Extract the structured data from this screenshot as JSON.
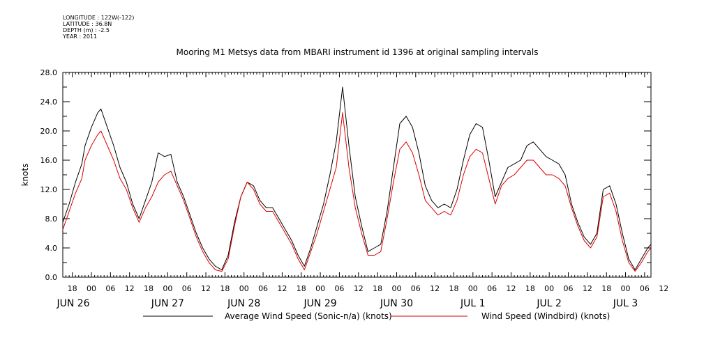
{
  "header": {
    "lines": [
      "LONGITUDE : 122W(-122)",
      "LATITUDE : 36.8N",
      "DEPTH (m) : -2.5",
      "YEAR : 2011"
    ]
  },
  "chart_data": {
    "type": "line",
    "title": "Mooring M1 Metsys data from MBARI instrument id 1396 at original sampling intervals",
    "xlabel": "",
    "ylabel": "knots",
    "ylim": [
      0,
      28
    ],
    "yticks": [
      "0.0",
      "4.0",
      "8.0",
      "12.0",
      "16.0",
      "20.0",
      "24.0",
      "28.0"
    ],
    "xlim_hours": [
      15,
      200
    ],
    "xticks_hours": [
      "18",
      "00",
      "06",
      "12",
      "18",
      "00",
      "06",
      "12",
      "18",
      "00",
      "06",
      "12",
      "18",
      "00",
      "06",
      "12",
      "18",
      "00",
      "06",
      "12",
      "18",
      "00",
      "06",
      "12",
      "18",
      "00",
      "06",
      "12",
      "18",
      "00",
      "06",
      "12"
    ],
    "xdates": [
      "JUN 26",
      "JUN 27",
      "JUN 28",
      "JUN 29",
      "JUN 30",
      "JUL  1",
      "JUL  2",
      "JUL  3"
    ],
    "series": [
      {
        "name": "Average Wind Speed (Sonic-n/a) (knots)",
        "color": "#000000",
        "x": [
          15,
          17,
          19,
          21,
          22,
          24,
          26,
          27,
          29,
          31,
          33,
          35,
          37,
          39,
          41,
          43,
          45,
          47,
          49,
          51,
          53,
          55,
          57,
          59,
          61,
          63,
          65,
          67,
          69,
          71,
          73,
          75,
          77,
          79,
          81,
          83,
          85,
          87,
          89,
          91,
          93,
          95,
          97,
          99,
          101,
          103,
          105,
          107,
          109,
          111,
          113,
          115,
          117,
          119,
          121,
          123,
          125,
          127,
          129,
          131,
          133,
          135,
          137,
          139,
          141,
          143,
          145,
          147,
          149,
          151,
          153,
          155,
          157,
          159,
          161,
          163,
          165,
          167,
          169,
          171,
          173,
          175,
          177,
          179,
          181,
          183,
          185,
          187,
          189,
          191,
          193,
          195,
          197,
          199,
          200
        ],
        "y": [
          7.5,
          10.0,
          13.0,
          15.5,
          18.0,
          20.5,
          22.5,
          23.0,
          20.5,
          18.0,
          15.0,
          13.0,
          10.0,
          8.0,
          10.5,
          13.0,
          17.0,
          16.5,
          16.8,
          13.0,
          11.0,
          8.5,
          6.0,
          4.0,
          2.5,
          1.5,
          1.0,
          3.0,
          7.5,
          11.0,
          13.0,
          12.5,
          10.5,
          9.5,
          9.5,
          8.0,
          6.5,
          5.0,
          3.0,
          1.5,
          4.0,
          7.0,
          10.0,
          14.0,
          18.5,
          26.0,
          18.0,
          11.0,
          7.0,
          3.5,
          4.0,
          4.5,
          9.0,
          15.0,
          21.0,
          22.0,
          20.5,
          17.0,
          12.5,
          10.5,
          9.5,
          10.0,
          9.5,
          12.0,
          16.0,
          19.5,
          21.0,
          20.5,
          16.0,
          11.0,
          13.0,
          15.0,
          15.5,
          16.0,
          18.0,
          18.5,
          17.5,
          16.5,
          16.0,
          15.5,
          14.0,
          10.0,
          7.5,
          5.5,
          4.5,
          6.0,
          12.0,
          12.5,
          10.0,
          6.0,
          2.5,
          1.0,
          2.5,
          4.0,
          4.5
        ]
      },
      {
        "name": "Wind Speed (Windbird) (knots)",
        "color": "#dd0000",
        "x": [
          15,
          17,
          19,
          21,
          22,
          24,
          26,
          27,
          29,
          31,
          33,
          35,
          37,
          39,
          41,
          43,
          45,
          47,
          49,
          51,
          53,
          55,
          57,
          59,
          61,
          63,
          65,
          67,
          69,
          71,
          73,
          75,
          77,
          79,
          81,
          83,
          85,
          87,
          89,
          91,
          93,
          95,
          97,
          99,
          101,
          103,
          105,
          107,
          109,
          111,
          113,
          115,
          117,
          119,
          121,
          123,
          125,
          127,
          129,
          131,
          133,
          135,
          137,
          139,
          141,
          143,
          145,
          147,
          149,
          151,
          153,
          155,
          157,
          159,
          161,
          163,
          165,
          167,
          169,
          171,
          173,
          175,
          177,
          179,
          181,
          183,
          185,
          187,
          189,
          191,
          193,
          195,
          197,
          199,
          200
        ],
        "y": [
          6.5,
          9.0,
          11.5,
          13.5,
          16.0,
          18.0,
          19.5,
          20.0,
          18.0,
          16.0,
          13.5,
          12.0,
          9.5,
          7.5,
          9.5,
          11.0,
          13.0,
          14.0,
          14.5,
          12.5,
          10.5,
          8.0,
          5.5,
          3.5,
          2.0,
          1.0,
          0.8,
          2.5,
          7.0,
          11.0,
          13.0,
          12.0,
          10.0,
          9.0,
          9.0,
          7.5,
          6.0,
          4.5,
          2.5,
          1.0,
          3.5,
          6.0,
          9.0,
          12.0,
          15.0,
          22.5,
          15.0,
          9.5,
          6.0,
          3.0,
          3.0,
          3.5,
          8.0,
          13.0,
          17.5,
          18.5,
          17.0,
          14.0,
          10.5,
          9.5,
          8.5,
          9.0,
          8.5,
          10.5,
          14.0,
          16.5,
          17.5,
          17.0,
          13.5,
          10.0,
          12.5,
          13.5,
          14.0,
          15.0,
          16.0,
          16.0,
          15.0,
          14.0,
          14.0,
          13.5,
          12.5,
          9.5,
          7.0,
          5.0,
          4.0,
          5.5,
          11.0,
          11.5,
          9.0,
          5.0,
          2.0,
          0.8,
          2.0,
          3.5,
          4.0
        ]
      }
    ],
    "grid": false,
    "legend_placement": "bottom"
  }
}
